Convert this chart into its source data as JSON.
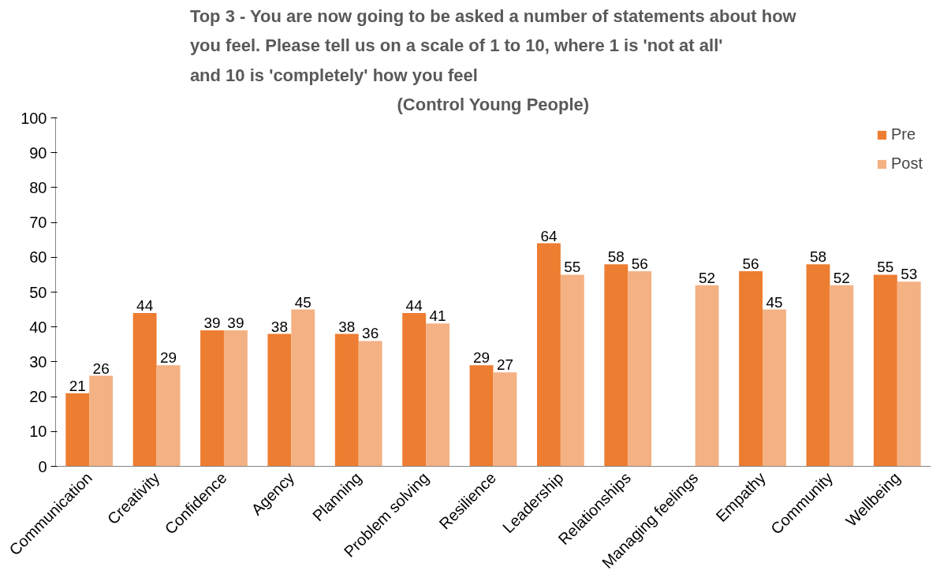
{
  "chart_data": {
    "type": "bar",
    "title": "Top 3 - You are now going to be asked a number of statements about how you feel. Please tell us on a scale of 1 to 10, where 1 is 'not at all' and 10 is 'completely' how you feel",
    "subtitle": "(Control Young People)",
    "categories": [
      "Communication",
      "Creativity",
      "Confidence",
      "Agency",
      "Planning",
      "Problem solving",
      "Resilience",
      "Leadership",
      "Relationships",
      "Managing feelings",
      "Empathy",
      "Community",
      "Wellbeing"
    ],
    "series": [
      {
        "name": "Pre",
        "color": "#ed7d31",
        "values": [
          21,
          44,
          39,
          38,
          38,
          44,
          29,
          64,
          58,
          null,
          56,
          58,
          55
        ]
      },
      {
        "name": "Post",
        "color": "#f4b183",
        "values": [
          26,
          29,
          39,
          45,
          36,
          41,
          27,
          55,
          56,
          52,
          45,
          52,
          53
        ]
      }
    ],
    "ylim": [
      0,
      100
    ],
    "yticks": [
      0,
      10,
      20,
      30,
      40,
      50,
      60,
      70,
      80,
      90,
      100
    ],
    "data_labels": true,
    "grid": false,
    "legend": "top right"
  }
}
